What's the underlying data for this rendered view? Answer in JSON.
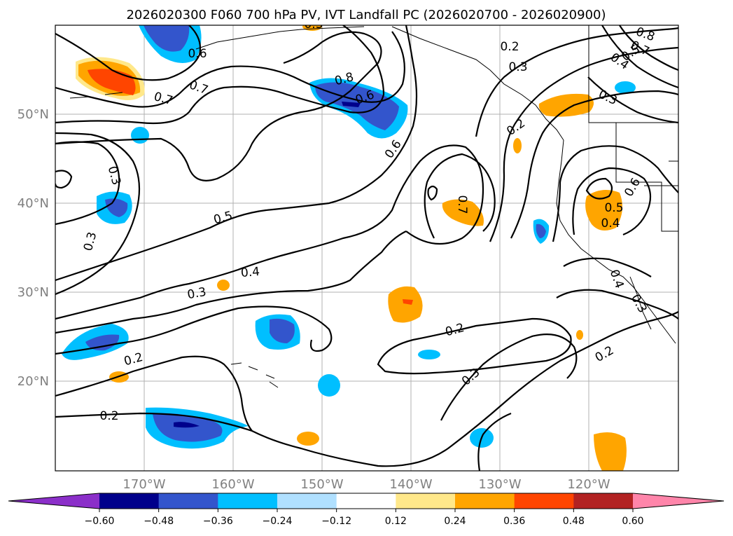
{
  "title": "2026020300 F060 700 hPa PV, IVT Landfall PC (2026020700 - 2026020900)",
  "lat_labels": [
    "50°N",
    "40°N",
    "30°N",
    "20°N"
  ],
  "lon_labels": [
    "170°W",
    "160°W",
    "150°W",
    "140°W",
    "130°W",
    "120°W"
  ],
  "colorbar": {
    "ticks": [
      "−0.60",
      "−0.48",
      "−0.36",
      "−0.24",
      "−0.12",
      "0.12",
      "0.24",
      "0.36",
      "0.48",
      "0.60"
    ],
    "colors": [
      "#8b2fc9",
      "#00008b",
      "#3355cc",
      "#00bfff",
      "#b0e0ff",
      "#ffffff",
      "#ffe88a",
      "#ffa500",
      "#ff4500",
      "#b22222",
      "#ff85aa"
    ]
  },
  "contour_labels": [
    "0.6",
    "0.7",
    "0.7",
    "0.8",
    "0.6",
    "0.2",
    "0.3",
    "0.8",
    "0.7",
    "0.4",
    "0.5",
    "0.6",
    "0.3",
    "0.3",
    "0.2",
    "0.6",
    "0.7",
    "0.5",
    "0.5",
    "0.4",
    "0.3",
    "0.4",
    "0.4",
    "0.3",
    "0.3",
    "0.2",
    "0.2",
    "0.3",
    "0.2",
    "0.2",
    "0.3"
  ]
}
